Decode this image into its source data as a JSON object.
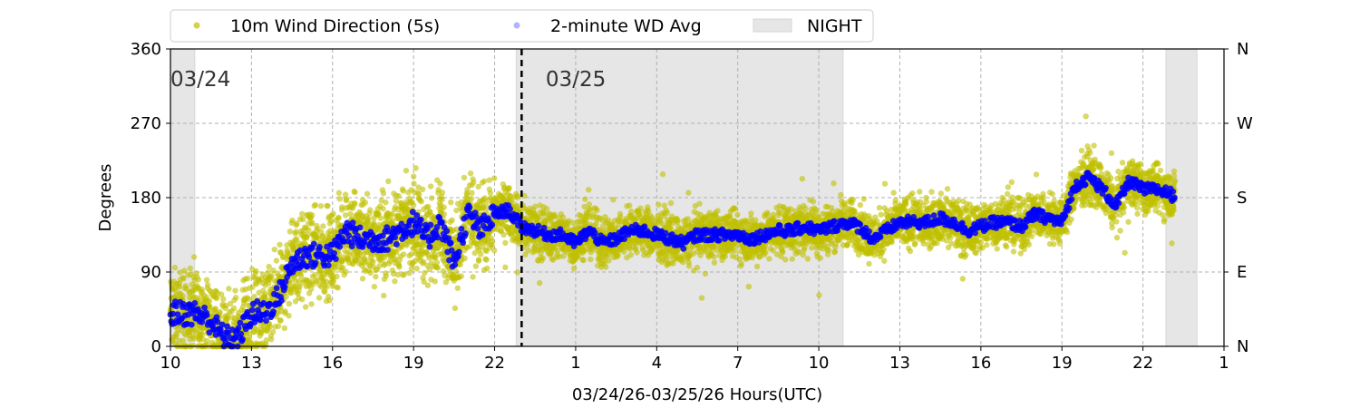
{
  "chart_data": {
    "type": "scatter",
    "xlabel": "03/24/26-03/25/26  Hours(UTC)",
    "ylabel": "Degrees",
    "xlim": [
      10,
      49
    ],
    "ylim": [
      0,
      360
    ],
    "x_ticks": [
      10,
      13,
      16,
      19,
      22,
      25,
      28,
      31,
      34,
      37,
      40,
      43,
      46,
      49
    ],
    "x_tick_labels": [
      "10",
      "13",
      "16",
      "19",
      "22",
      "1",
      "4",
      "7",
      "10",
      "13",
      "16",
      "19",
      "22",
      "1"
    ],
    "y_ticks": [
      0,
      90,
      180,
      270,
      360
    ],
    "y_tick_labels": [
      "0",
      "90",
      "180",
      "270",
      "360"
    ],
    "right_tick_labels": [
      "N",
      "E",
      "S",
      "W",
      "N"
    ],
    "grid": true,
    "legend_position": "top-center-outside",
    "legend": [
      "10m Wind Direction (5s)",
      "2-minute WD Avg",
      "NIGHT"
    ],
    "day_labels": [
      {
        "x": 10,
        "text": "03/24"
      },
      {
        "x": 25,
        "text": "03/25"
      }
    ],
    "day_divider_x": 23,
    "night_spans": [
      [
        10,
        10.9
      ],
      [
        22.8,
        34.9
      ],
      [
        46.85,
        48
      ]
    ],
    "colors": {
      "raw": "#bfbf00",
      "avg": "#0000ff",
      "night": "#e6e6e6"
    },
    "avg_series": {
      "x": [
        10,
        10.5,
        11,
        11.5,
        12,
        12.5,
        13,
        13.5,
        14,
        14.5,
        15,
        15.5,
        16,
        16.5,
        17,
        17.5,
        18,
        18.5,
        19,
        19.5,
        20,
        20.5,
        21,
        21.5,
        22,
        22.5,
        23,
        23.5,
        24,
        24.5,
        25,
        25.5,
        26,
        26.5,
        27,
        27.5,
        28,
        28.5,
        29,
        29.5,
        30,
        30.5,
        31,
        31.5,
        32,
        32.5,
        33,
        33.5,
        34,
        34.5,
        35,
        35.5,
        36,
        36.5,
        37,
        37.5,
        38,
        38.5,
        39,
        39.5,
        40,
        40.5,
        41,
        41.5,
        42,
        42.5,
        43,
        43.5,
        44,
        44.5,
        45,
        45.5,
        46,
        46.5,
        47,
        47.2
      ],
      "y": [
        40,
        40,
        40,
        30,
        10,
        10,
        40,
        40,
        60,
        100,
        110,
        110,
        110,
        140,
        130,
        130,
        130,
        140,
        150,
        130,
        150,
        100,
        160,
        140,
        160,
        165,
        145,
        140,
        135,
        135,
        125,
        140,
        125,
        130,
        140,
        140,
        135,
        130,
        125,
        135,
        135,
        135,
        135,
        130,
        135,
        140,
        140,
        145,
        140,
        145,
        150,
        145,
        130,
        140,
        150,
        150,
        150,
        155,
        150,
        140,
        145,
        150,
        150,
        145,
        160,
        155,
        150,
        195,
        205,
        190,
        170,
        200,
        190,
        190,
        185,
        180
      ]
    }
  }
}
